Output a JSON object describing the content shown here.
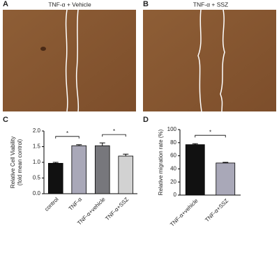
{
  "panels": [
    {
      "letter": "A",
      "caption": "TNF-α + Vehicle"
    },
    {
      "letter": "B",
      "caption": "TNF-α + SSZ"
    }
  ],
  "chart_data": [
    {
      "type": "bar",
      "panel_label": "C",
      "ylabel": [
        "Relative Cell Viability",
        "(fold mean control)"
      ],
      "categories": [
        "control",
        "TNF-α",
        "TNF-α+vehicle",
        "TNF-α+SSZ"
      ],
      "values": [
        0.97,
        1.53,
        1.53,
        1.2
      ],
      "errors": [
        0.03,
        0.03,
        0.09,
        0.06
      ],
      "colors": [
        "#111111",
        "#a9a8b8",
        "#77777c",
        "#d2d2d2"
      ],
      "ylim": [
        0,
        2.0
      ],
      "yticks": [
        {
          "value": 0,
          "label": "0.0"
        },
        0.5,
        {
          "value": 1,
          "label": "1.0"
        },
        1.5,
        {
          "value": 2,
          "label": "2.0"
        }
      ],
      "significance": [
        {
          "text": "*",
          "from": 0,
          "to": 1
        },
        {
          "text": "*",
          "from": 2,
          "to": 3
        }
      ]
    },
    {
      "type": "bar",
      "panel_label": "D",
      "ylabel": [
        "Relative migration rate (%)"
      ],
      "categories": [
        "TNF-α+vehicle",
        "TNF-α+SSZ"
      ],
      "values": [
        77,
        49
      ],
      "errors": [
        1.5,
        1
      ],
      "colors": [
        "#111111",
        "#a9a8b8"
      ],
      "ylim": [
        0,
        100
      ],
      "yticks": [
        0,
        20,
        40,
        60,
        80,
        100
      ],
      "significance": [
        {
          "text": "*",
          "from": 0,
          "to": 1
        }
      ]
    }
  ]
}
